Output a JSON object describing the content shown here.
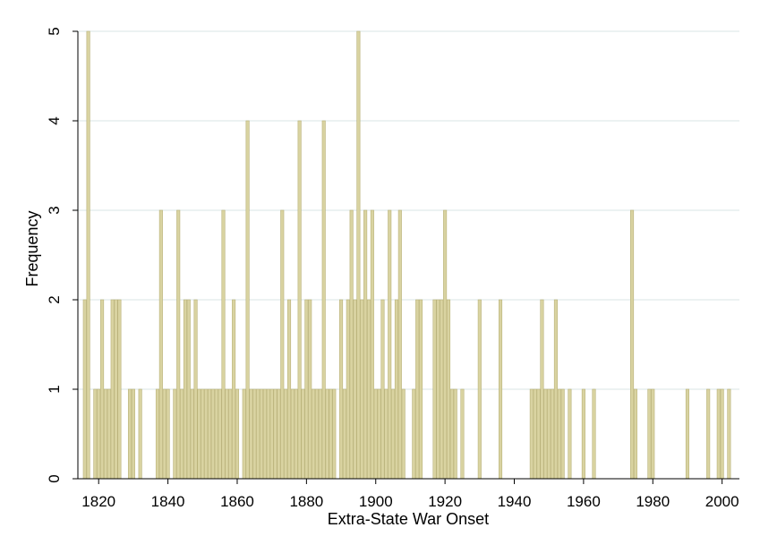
{
  "chart_data": {
    "type": "bar",
    "xlabel": "Extra-State War Onset",
    "ylabel": "Frequency",
    "xlim": [
      1814,
      2005
    ],
    "ylim": [
      0,
      5
    ],
    "x_ticks": [
      1820,
      1840,
      1860,
      1880,
      1900,
      1920,
      1940,
      1960,
      1980,
      2000
    ],
    "y_ticks": [
      0,
      1,
      2,
      3,
      4,
      5
    ],
    "grid": true,
    "colors": {
      "bar_fill": "#d9d3a1",
      "bar_stroke": "#b9b27a",
      "grid": "#e6eded",
      "axis": "#000000"
    },
    "x": [
      1816,
      1817,
      1819,
      1820,
      1821,
      1822,
      1823,
      1824,
      1825,
      1826,
      1829,
      1830,
      1832,
      1837,
      1838,
      1839,
      1840,
      1842,
      1843,
      1844,
      1845,
      1846,
      1847,
      1848,
      1849,
      1850,
      1851,
      1852,
      1853,
      1854,
      1855,
      1856,
      1857,
      1858,
      1859,
      1860,
      1862,
      1863,
      1864,
      1865,
      1866,
      1867,
      1868,
      1869,
      1870,
      1871,
      1872,
      1873,
      1874,
      1875,
      1876,
      1877,
      1878,
      1879,
      1880,
      1881,
      1882,
      1883,
      1884,
      1885,
      1886,
      1887,
      1888,
      1890,
      1891,
      1892,
      1893,
      1894,
      1895,
      1896,
      1897,
      1898,
      1899,
      1900,
      1901,
      1902,
      1903,
      1904,
      1905,
      1906,
      1907,
      1908,
      1911,
      1912,
      1913,
      1917,
      1918,
      1919,
      1920,
      1921,
      1922,
      1923,
      1925,
      1930,
      1936,
      1945,
      1946,
      1947,
      1948,
      1949,
      1950,
      1951,
      1952,
      1953,
      1954,
      1956,
      1960,
      1963,
      1974,
      1975,
      1979,
      1980,
      1990,
      1996,
      1999,
      2000,
      2002
    ],
    "values": [
      2,
      5,
      1,
      1,
      2,
      1,
      1,
      2,
      2,
      2,
      1,
      1,
      1,
      1,
      3,
      1,
      1,
      1,
      3,
      1,
      2,
      2,
      1,
      2,
      1,
      1,
      1,
      1,
      1,
      1,
      1,
      3,
      1,
      1,
      2,
      1,
      1,
      4,
      1,
      1,
      1,
      1,
      1,
      1,
      1,
      1,
      1,
      3,
      1,
      2,
      1,
      1,
      4,
      1,
      2,
      2,
      1,
      1,
      1,
      4,
      1,
      1,
      1,
      2,
      1,
      2,
      3,
      2,
      5,
      2,
      3,
      2,
      3,
      1,
      1,
      2,
      1,
      3,
      1,
      2,
      3,
      1,
      1,
      2,
      2,
      2,
      2,
      2,
      3,
      2,
      1,
      1,
      1,
      2,
      2,
      1,
      1,
      1,
      2,
      1,
      1,
      1,
      2,
      1,
      1,
      1,
      1,
      1,
      3,
      1,
      1,
      1,
      1,
      1,
      1,
      1,
      1
    ]
  }
}
